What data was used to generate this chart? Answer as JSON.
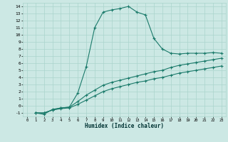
{
  "title": "",
  "xlabel": "Humidex (Indice chaleur)",
  "bg_color": "#cce8e4",
  "grid_color": "#aad4cc",
  "line_color": "#1a7a6a",
  "xlim": [
    -0.5,
    23.5
  ],
  "ylim": [
    -1.5,
    14.5
  ],
  "xticks": [
    0,
    1,
    2,
    3,
    4,
    5,
    6,
    7,
    8,
    9,
    10,
    11,
    12,
    13,
    14,
    15,
    16,
    17,
    18,
    19,
    20,
    21,
    22,
    23
  ],
  "yticks": [
    -1,
    0,
    1,
    2,
    3,
    4,
    5,
    6,
    7,
    8,
    9,
    10,
    11,
    12,
    13,
    14
  ],
  "line1_x": [
    1,
    2,
    3,
    4,
    5,
    6,
    7,
    8,
    9,
    10,
    11,
    12,
    13,
    14,
    15,
    16,
    17,
    18,
    19,
    20,
    21,
    22,
    23
  ],
  "line1_y": [
    -1,
    -1.2,
    -0.5,
    -0.3,
    -0.2,
    1.8,
    5.5,
    11.0,
    13.2,
    13.5,
    13.7,
    14.0,
    13.2,
    12.8,
    9.5,
    8.0,
    7.4,
    7.3,
    7.4,
    7.4,
    7.4,
    7.5,
    7.4
  ],
  "line2_x": [
    1,
    2,
    3,
    4,
    5,
    6,
    7,
    8,
    9,
    10,
    11,
    12,
    13,
    14,
    15,
    16,
    17,
    18,
    19,
    20,
    21,
    22,
    23
  ],
  "line2_y": [
    -1,
    -1.0,
    -0.6,
    -0.3,
    -0.2,
    0.6,
    1.5,
    2.2,
    2.9,
    3.3,
    3.6,
    3.9,
    4.2,
    4.5,
    4.8,
    5.0,
    5.4,
    5.7,
    5.9,
    6.1,
    6.3,
    6.5,
    6.7
  ],
  "line3_x": [
    1,
    2,
    3,
    4,
    5,
    6,
    7,
    8,
    9,
    10,
    11,
    12,
    13,
    14,
    15,
    16,
    17,
    18,
    19,
    20,
    21,
    22,
    23
  ],
  "line3_y": [
    -1,
    -1.0,
    -0.6,
    -0.4,
    -0.3,
    0.2,
    0.8,
    1.4,
    2.0,
    2.4,
    2.7,
    3.0,
    3.3,
    3.5,
    3.8,
    4.0,
    4.3,
    4.6,
    4.8,
    5.0,
    5.2,
    5.4,
    5.6
  ]
}
